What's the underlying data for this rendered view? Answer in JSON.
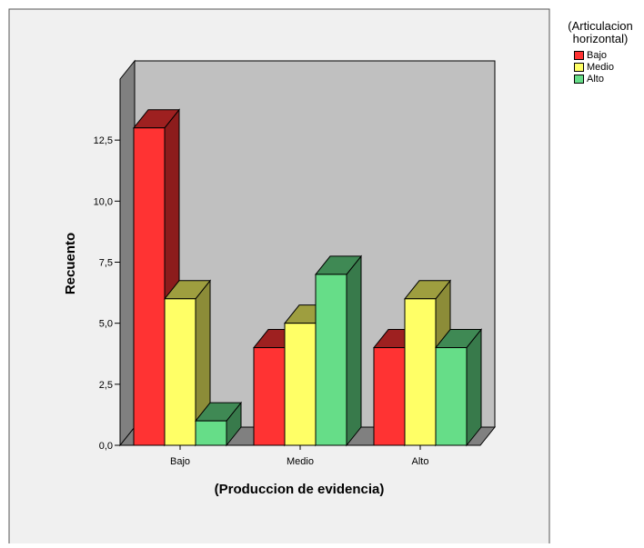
{
  "chart_data": {
    "type": "bar",
    "title": "",
    "xlabel": "(Produccion de evidencia)",
    "ylabel": "Recuento",
    "categories": [
      "Bajo",
      "Medio",
      "Alto"
    ],
    "legend_title": "(Articulacion horizontal)",
    "legend_title_lines": [
      "(Articulacion",
      "horizontal)"
    ],
    "legend_position": "top-right",
    "series": [
      {
        "name": "Bajo",
        "color": "#ff3333",
        "values": [
          13,
          4,
          4
        ]
      },
      {
        "name": "Medio",
        "color": "#ffff66",
        "values": [
          6,
          5,
          6
        ]
      },
      {
        "name": "Alto",
        "color": "#66dd88",
        "values": [
          1,
          7,
          4
        ]
      }
    ],
    "ylim": [
      0,
      15
    ],
    "yticks": [
      0,
      2.5,
      5,
      7.5,
      10,
      12.5
    ],
    "ytick_labels": [
      "0,0",
      "2,5",
      "5,0",
      "7,5",
      "10,0",
      "12,5"
    ],
    "grid": false,
    "style": "3d",
    "colors": {
      "outer_background": "#f0f0f0",
      "back_wall": "#c0c0c0",
      "side_wall": "#808080"
    }
  }
}
